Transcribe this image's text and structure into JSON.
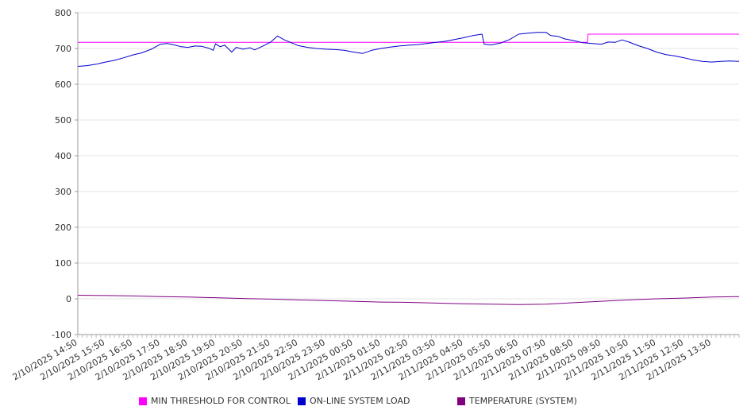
{
  "chart_data": {
    "type": "line",
    "title": "",
    "xlabel": "",
    "ylabel": "",
    "ylim": [
      -100,
      800
    ],
    "y_ticks": [
      -100,
      0,
      100,
      200,
      300,
      400,
      500,
      600,
      700,
      800
    ],
    "grid": "horizontal",
    "legend_position": "bottom",
    "x_tick_labels": [
      "2/10/2025 14:50",
      "2/10/2025 15:50",
      "2/10/2025 16:50",
      "2/10/2025 17:50",
      "2/10/2025 18:50",
      "2/10/2025 19:50",
      "2/10/2025 20:50",
      "2/10/2025 21:50",
      "2/10/2025 22:50",
      "2/10/2025 23:50",
      "2/11/2025 00:50",
      "2/11/2025 01:50",
      "2/11/2025 02:50",
      "2/11/2025 03:50",
      "2/11/2025 04:50",
      "2/11/2025 05:50",
      "2/11/2025 06:50",
      "2/11/2025 07:50",
      "2/11/2025 08:50",
      "2/11/2025 09:50",
      "2/11/2025 10:50",
      "2/11/2025 11:50",
      "2/11/2025 12:50",
      "2/11/2025 13:50"
    ],
    "x_start": "2/10/2025 14:50",
    "x_end": "2/11/2025 14:50",
    "series": [
      {
        "name": "MIN THRESHOLD FOR CONTROL",
        "color": "#ff00ff",
        "points": [
          [
            "2/10/2025 14:50",
            717
          ],
          [
            "2/11/2025 09:20",
            717
          ],
          [
            "2/11/2025 09:21",
            740
          ],
          [
            "2/11/2025 14:50",
            740
          ]
        ]
      },
      {
        "name": "ON-LINE SYSTEM LOAD",
        "color": "#0000cc",
        "points": [
          [
            "2/10/2025 14:50",
            650
          ],
          [
            "2/10/2025 15:10",
            652
          ],
          [
            "2/10/2025 15:30",
            656
          ],
          [
            "2/10/2025 15:50",
            662
          ],
          [
            "2/10/2025 16:10",
            667
          ],
          [
            "2/10/2025 16:30",
            674
          ],
          [
            "2/10/2025 16:50",
            682
          ],
          [
            "2/10/2025 17:10",
            688
          ],
          [
            "2/10/2025 17:30",
            698
          ],
          [
            "2/10/2025 17:50",
            712
          ],
          [
            "2/10/2025 18:05",
            714
          ],
          [
            "2/10/2025 18:20",
            710
          ],
          [
            "2/10/2025 18:35",
            705
          ],
          [
            "2/10/2025 18:50",
            703
          ],
          [
            "2/10/2025 19:05",
            707
          ],
          [
            "2/10/2025 19:20",
            706
          ],
          [
            "2/10/2025 19:35",
            701
          ],
          [
            "2/10/2025 19:45",
            695
          ],
          [
            "2/10/2025 19:50",
            713
          ],
          [
            "2/10/2025 20:00",
            705
          ],
          [
            "2/10/2025 20:10",
            709
          ],
          [
            "2/10/2025 20:25",
            690
          ],
          [
            "2/10/2025 20:35",
            703
          ],
          [
            "2/10/2025 20:50",
            698
          ],
          [
            "2/10/2025 21:05",
            702
          ],
          [
            "2/10/2025 21:15",
            696
          ],
          [
            "2/10/2025 21:30",
            705
          ],
          [
            "2/10/2025 21:50",
            718
          ],
          [
            "2/10/2025 22:05",
            735
          ],
          [
            "2/10/2025 22:20",
            724
          ],
          [
            "2/10/2025 22:35",
            716
          ],
          [
            "2/10/2025 22:50",
            708
          ],
          [
            "2/10/2025 23:10",
            703
          ],
          [
            "2/10/2025 23:30",
            700
          ],
          [
            "2/10/2025 23:50",
            698
          ],
          [
            "2/11/2025 00:10",
            697
          ],
          [
            "2/11/2025 00:30",
            695
          ],
          [
            "2/11/2025 00:50",
            690
          ],
          [
            "2/11/2025 01:10",
            686
          ],
          [
            "2/11/2025 01:30",
            695
          ],
          [
            "2/11/2025 01:50",
            700
          ],
          [
            "2/11/2025 02:10",
            704
          ],
          [
            "2/11/2025 02:30",
            707
          ],
          [
            "2/11/2025 02:50",
            709
          ],
          [
            "2/11/2025 03:10",
            711
          ],
          [
            "2/11/2025 03:30",
            714
          ],
          [
            "2/11/2025 03:50",
            717
          ],
          [
            "2/11/2025 04:10",
            720
          ],
          [
            "2/11/2025 04:30",
            725
          ],
          [
            "2/11/2025 04:50",
            730
          ],
          [
            "2/11/2025 05:10",
            736
          ],
          [
            "2/11/2025 05:30",
            740
          ],
          [
            "2/11/2025 05:35",
            712
          ],
          [
            "2/11/2025 05:50",
            710
          ],
          [
            "2/11/2025 06:10",
            715
          ],
          [
            "2/11/2025 06:30",
            725
          ],
          [
            "2/11/2025 06:50",
            740
          ],
          [
            "2/11/2025 07:10",
            743
          ],
          [
            "2/11/2025 07:30",
            745
          ],
          [
            "2/11/2025 07:50",
            745
          ],
          [
            "2/11/2025 08:00",
            736
          ],
          [
            "2/11/2025 08:15",
            734
          ],
          [
            "2/11/2025 08:30",
            727
          ],
          [
            "2/11/2025 08:50",
            722
          ],
          [
            "2/11/2025 09:10",
            716
          ],
          [
            "2/11/2025 09:30",
            714
          ],
          [
            "2/11/2025 09:50",
            712
          ],
          [
            "2/11/2025 10:05",
            718
          ],
          [
            "2/11/2025 10:20",
            717
          ],
          [
            "2/11/2025 10:35",
            724
          ],
          [
            "2/11/2025 10:50",
            718
          ],
          [
            "2/11/2025 11:10",
            708
          ],
          [
            "2/11/2025 11:30",
            700
          ],
          [
            "2/11/2025 11:50",
            690
          ],
          [
            "2/11/2025 12:10",
            683
          ],
          [
            "2/11/2025 12:30",
            679
          ],
          [
            "2/11/2025 12:50",
            674
          ],
          [
            "2/11/2025 13:10",
            668
          ],
          [
            "2/11/2025 13:30",
            664
          ],
          [
            "2/11/2025 13:50",
            662
          ],
          [
            "2/11/2025 14:10",
            664
          ],
          [
            "2/11/2025 14:30",
            665
          ],
          [
            "2/11/2025 14:50",
            664
          ]
        ]
      },
      {
        "name": "TEMPERATURE (SYSTEM)",
        "color": "#800080",
        "points": [
          [
            "2/10/2025 14:50",
            10
          ],
          [
            "2/10/2025 15:50",
            9
          ],
          [
            "2/10/2025 16:50",
            8
          ],
          [
            "2/10/2025 17:50",
            6
          ],
          [
            "2/10/2025 18:50",
            5
          ],
          [
            "2/10/2025 19:50",
            3
          ],
          [
            "2/10/2025 20:50",
            1
          ],
          [
            "2/10/2025 21:50",
            -1
          ],
          [
            "2/10/2025 22:50",
            -3
          ],
          [
            "2/10/2025 23:50",
            -5
          ],
          [
            "2/11/2025 00:50",
            -7
          ],
          [
            "2/11/2025 01:50",
            -9
          ],
          [
            "2/11/2025 02:50",
            -10
          ],
          [
            "2/11/2025 03:50",
            -12
          ],
          [
            "2/11/2025 04:50",
            -14
          ],
          [
            "2/11/2025 05:50",
            -15
          ],
          [
            "2/11/2025 06:50",
            -16
          ],
          [
            "2/11/2025 07:50",
            -15
          ],
          [
            "2/11/2025 08:50",
            -11
          ],
          [
            "2/11/2025 09:50",
            -7
          ],
          [
            "2/11/2025 10:50",
            -3
          ],
          [
            "2/11/2025 11:50",
            0
          ],
          [
            "2/11/2025 12:50",
            2
          ],
          [
            "2/11/2025 13:50",
            5
          ],
          [
            "2/11/2025 14:50",
            6
          ]
        ]
      }
    ]
  }
}
